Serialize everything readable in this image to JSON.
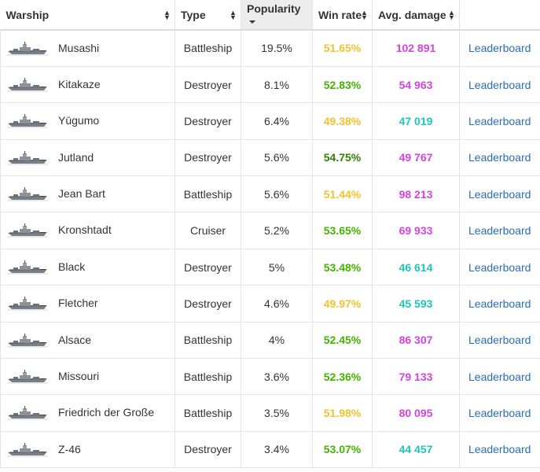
{
  "colors": {
    "win_rate_good": "#44b300",
    "win_rate_great": "#318000",
    "win_rate_avg": "#f2c12e",
    "damage_high": "#d442e0",
    "damage_mid": "#1cc7b8",
    "link": "#2a6db5"
  },
  "header": {
    "warship": "Warship",
    "type": "Type",
    "popularity": "Popularity",
    "win_rate": "Win rate",
    "avg_damage": "Avg. damage"
  },
  "rows": [
    {
      "ship": "Musashi",
      "type": "Battleship",
      "popularity": "19.5%",
      "win_rate": "51.65%",
      "win_rate_tier": "avg",
      "damage": "102 891",
      "damage_tier": "high",
      "link": "Leaderboard",
      "icon": "battleship-icon"
    },
    {
      "ship": "Kitakaze",
      "type": "Destroyer",
      "popularity": "8.1%",
      "win_rate": "52.83%",
      "win_rate_tier": "good",
      "damage": "54 963",
      "damage_tier": "high",
      "link": "Leaderboard",
      "icon": "destroyer-icon"
    },
    {
      "ship": "Yūgumo",
      "type": "Destroyer",
      "popularity": "6.4%",
      "win_rate": "49.38%",
      "win_rate_tier": "avg",
      "damage": "47 019",
      "damage_tier": "mid",
      "link": "Leaderboard",
      "icon": "destroyer-icon"
    },
    {
      "ship": "Jutland",
      "type": "Destroyer",
      "popularity": "5.6%",
      "win_rate": "54.75%",
      "win_rate_tier": "great",
      "damage": "49 767",
      "damage_tier": "high",
      "link": "Leaderboard",
      "icon": "destroyer-icon"
    },
    {
      "ship": "Jean Bart",
      "type": "Battleship",
      "popularity": "5.6%",
      "win_rate": "51.44%",
      "win_rate_tier": "avg",
      "damage": "98 213",
      "damage_tier": "high",
      "link": "Leaderboard",
      "icon": "battleship-icon"
    },
    {
      "ship": "Kronshtadt",
      "type": "Cruiser",
      "popularity": "5.2%",
      "win_rate": "53.65%",
      "win_rate_tier": "good",
      "damage": "69 933",
      "damage_tier": "high",
      "link": "Leaderboard",
      "icon": "cruiser-icon"
    },
    {
      "ship": "Black",
      "type": "Destroyer",
      "popularity": "5%",
      "win_rate": "53.48%",
      "win_rate_tier": "good",
      "damage": "46 614",
      "damage_tier": "mid",
      "link": "Leaderboard",
      "icon": "destroyer-icon"
    },
    {
      "ship": "Fletcher",
      "type": "Destroyer",
      "popularity": "4.6%",
      "win_rate": "49.97%",
      "win_rate_tier": "avg",
      "damage": "45 593",
      "damage_tier": "mid",
      "link": "Leaderboard",
      "icon": "destroyer-icon"
    },
    {
      "ship": "Alsace",
      "type": "Battleship",
      "popularity": "4%",
      "win_rate": "52.45%",
      "win_rate_tier": "good",
      "damage": "86 307",
      "damage_tier": "high",
      "link": "Leaderboard",
      "icon": "battleship-icon"
    },
    {
      "ship": "Missouri",
      "type": "Battleship",
      "popularity": "3.6%",
      "win_rate": "52.36%",
      "win_rate_tier": "good",
      "damage": "79 133",
      "damage_tier": "high",
      "link": "Leaderboard",
      "icon": "battleship-icon"
    },
    {
      "ship": "Friedrich der Große",
      "type": "Battleship",
      "popularity": "3.5%",
      "win_rate": "51.98%",
      "win_rate_tier": "avg",
      "damage": "80 095",
      "damage_tier": "high",
      "link": "Leaderboard",
      "icon": "battleship-icon"
    },
    {
      "ship": "Z-46",
      "type": "Destroyer",
      "popularity": "3.4%",
      "win_rate": "53.07%",
      "win_rate_tier": "good",
      "damage": "44 457",
      "damage_tier": "mid",
      "link": "Leaderboard",
      "icon": "destroyer-icon"
    }
  ]
}
